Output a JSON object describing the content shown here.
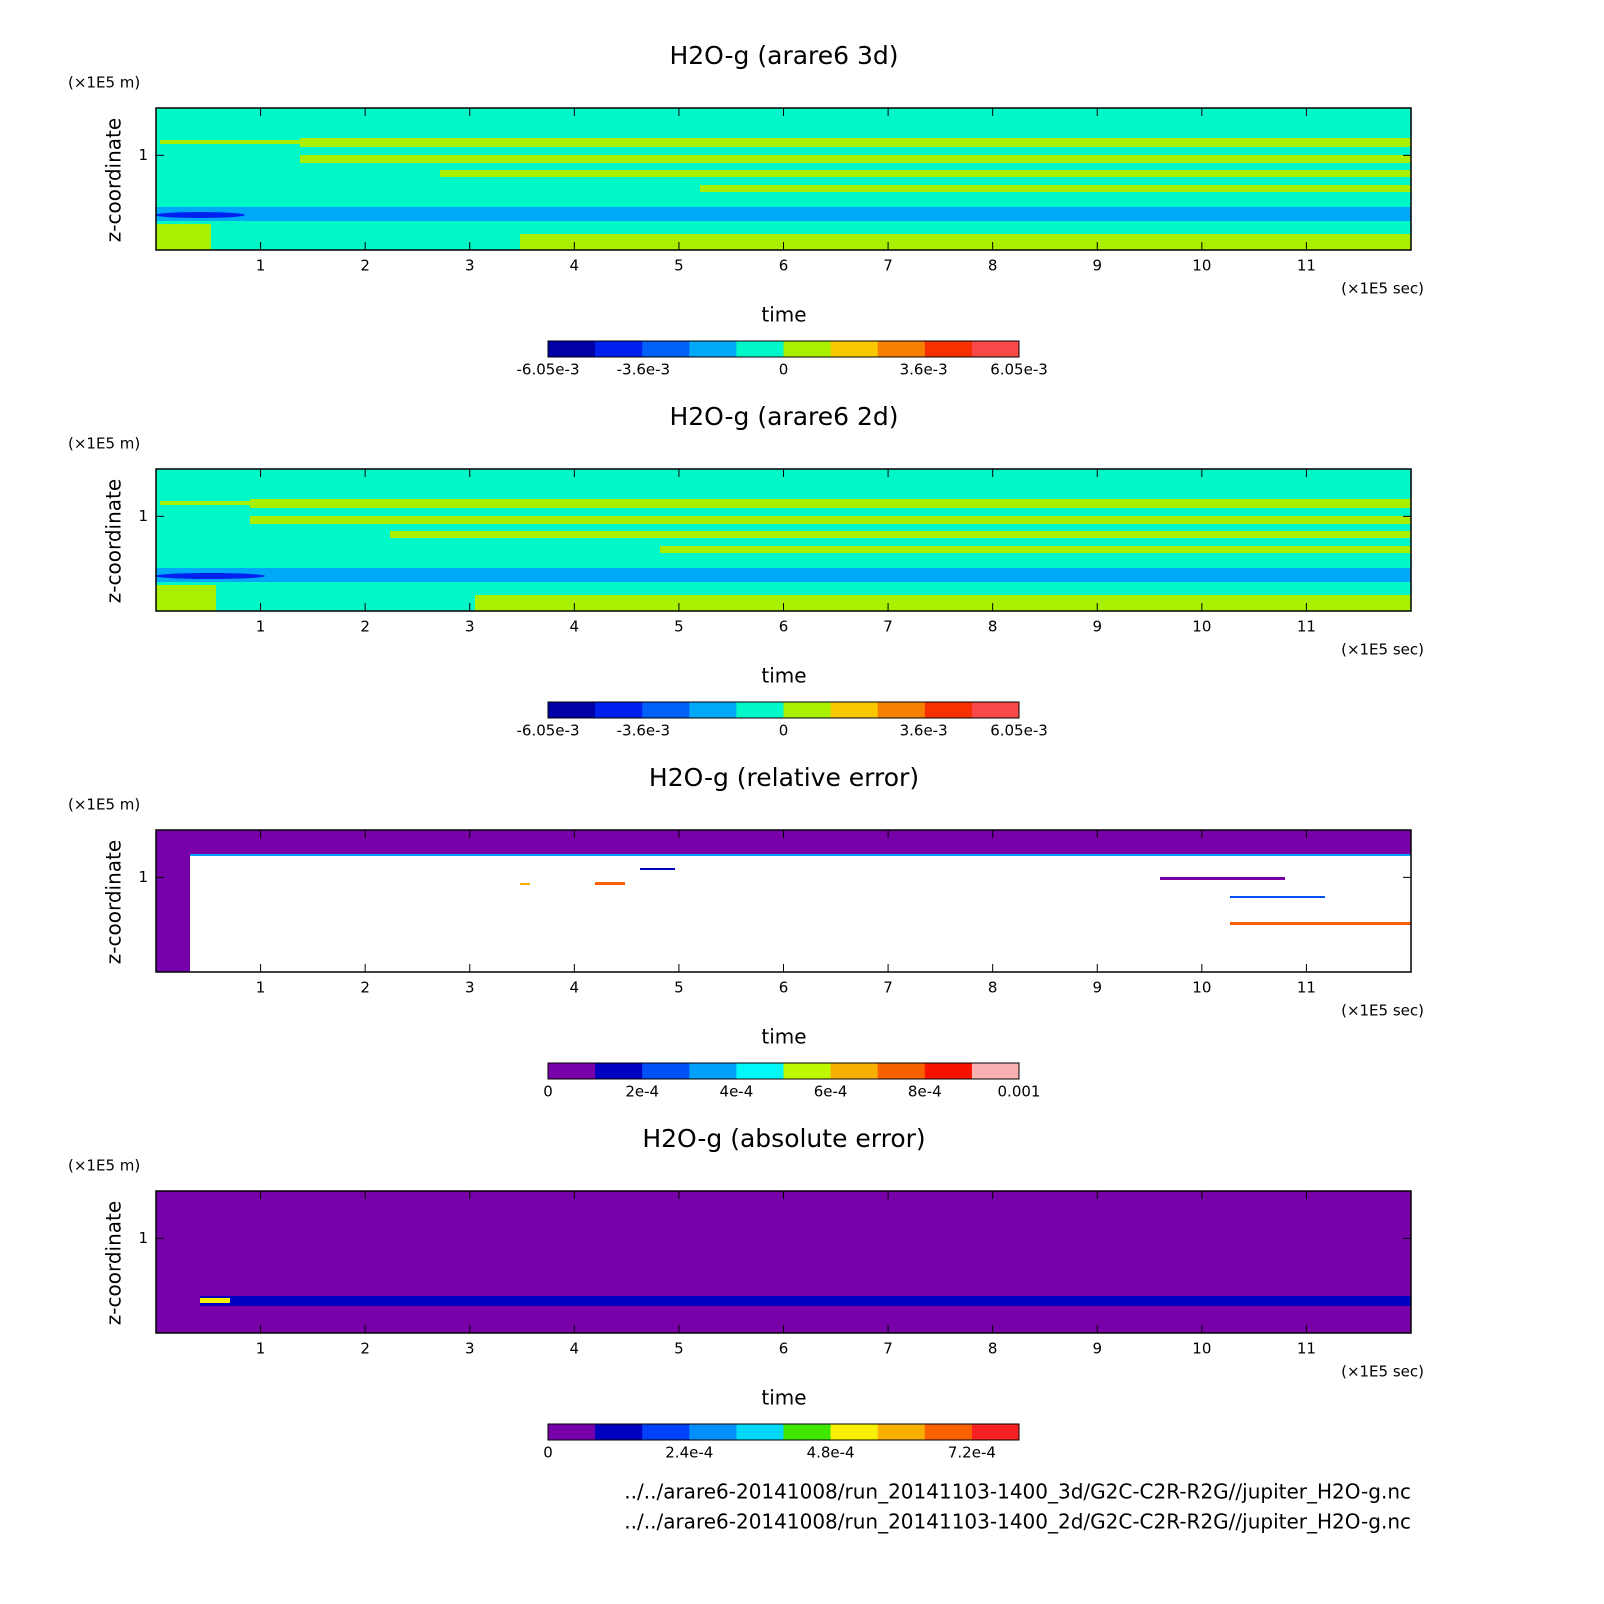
{
  "chart_data": [
    {
      "type": "contour",
      "title": "H2O-g (arare6 3d)",
      "xlabel": "time",
      "ylabel": "z-coordinate",
      "xunit": "(×1E5 sec)",
      "yunit": "(×1E5 m)",
      "xlim": [
        0,
        12
      ],
      "xticks": [
        1,
        2,
        3,
        4,
        5,
        6,
        7,
        8,
        9,
        10,
        11
      ],
      "ylim": [
        0,
        1.5
      ],
      "yticks": [
        1
      ],
      "colorbar": {
        "lim": [
          -0.00605,
          0.00605
        ],
        "ticks": [
          {
            "value": -0.00605,
            "label": "-6.05e-3"
          },
          {
            "value": -0.0036,
            "label": "-3.6e-3"
          },
          0,
          {
            "value": 0.0036,
            "label": "3.6e-3"
          },
          {
            "value": 0.00605,
            "label": "6.05e-3"
          }
        ],
        "colors": [
          "#0000a8",
          "#0020f0",
          "#0060f8",
          "#00a8f8",
          "#00f8c8",
          "#a8f000",
          "#f8c800",
          "#f88000",
          "#f83000",
          "#f84848"
        ]
      }
    },
    {
      "type": "contour",
      "title": "H2O-g (arare6 2d)",
      "xlabel": "time",
      "ylabel": "z-coordinate",
      "xunit": "(×1E5 sec)",
      "yunit": "(×1E5 m)",
      "xlim": [
        0,
        12
      ],
      "xticks": [
        1,
        2,
        3,
        4,
        5,
        6,
        7,
        8,
        9,
        10,
        11
      ],
      "ylim": [
        0,
        1.5
      ],
      "yticks": [
        1
      ],
      "colorbar": {
        "lim": [
          -0.00605,
          0.00605
        ],
        "ticks": [
          {
            "value": -0.00605,
            "label": "-6.05e-3"
          },
          {
            "value": -0.0036,
            "label": "-3.6e-3"
          },
          0,
          {
            "value": 0.0036,
            "label": "3.6e-3"
          },
          {
            "value": 0.00605,
            "label": "6.05e-3"
          }
        ],
        "colors": [
          "#0000a8",
          "#0020f0",
          "#0060f8",
          "#00a8f8",
          "#00f8c8",
          "#a8f000",
          "#f8c800",
          "#f88000",
          "#f83000",
          "#f84848"
        ]
      }
    },
    {
      "type": "contour",
      "title": "H2O-g (relative error)",
      "xlabel": "time",
      "ylabel": "z-coordinate",
      "xunit": "(×1E5 sec)",
      "yunit": "(×1E5 m)",
      "xlim": [
        0,
        12
      ],
      "xticks": [
        1,
        2,
        3,
        4,
        5,
        6,
        7,
        8,
        9,
        10,
        11
      ],
      "ylim": [
        0,
        1.5
      ],
      "yticks": [
        1
      ],
      "colorbar": {
        "lim": [
          0,
          0.001
        ],
        "ticks": [
          0,
          {
            "value": 0.0002,
            "label": "2e-4"
          },
          {
            "value": 0.0004,
            "label": "4e-4"
          },
          {
            "value": 0.0006,
            "label": "6e-4"
          },
          {
            "value": 0.0008,
            "label": "8e-4"
          },
          0.001
        ],
        "colors": [
          "#7800a8",
          "#0000c0",
          "#0050f8",
          "#00a0f8",
          "#00f8f8",
          "#c0f800",
          "#f8b000",
          "#f86000",
          "#f81000",
          "#f8b0b0"
        ]
      }
    },
    {
      "type": "contour",
      "title": "H2O-g (absolute error)",
      "xlabel": "time",
      "ylabel": "z-coordinate",
      "xunit": "(×1E5 sec)",
      "yunit": "(×1E5 m)",
      "xlim": [
        0,
        12
      ],
      "xticks": [
        1,
        2,
        3,
        4,
        5,
        6,
        7,
        8,
        9,
        10,
        11
      ],
      "ylim": [
        0,
        1.5
      ],
      "yticks": [
        1
      ],
      "colorbar": {
        "lim": [
          0,
          0.0008
        ],
        "ticks": [
          0,
          {
            "value": 0.00024,
            "label": "2.4e-4"
          },
          {
            "value": 0.00048,
            "label": "4.8e-4"
          },
          {
            "value": 0.00072,
            "label": "7.2e-4"
          }
        ],
        "colors": [
          "#7800a8",
          "#0000c0",
          "#0040f8",
          "#0090f8",
          "#00d8f8",
          "#40e800",
          "#f8f000",
          "#f8b000",
          "#f86000",
          "#f82020"
        ]
      }
    }
  ],
  "footer": [
    "../../arare6-20141008/run_20141103-1400_3d/G2C-C2R-R2G//jupiter_H2O-g.nc",
    "../../arare6-20141008/run_20141103-1400_2d/G2C-C2R-R2G//jupiter_H2O-g.nc"
  ]
}
